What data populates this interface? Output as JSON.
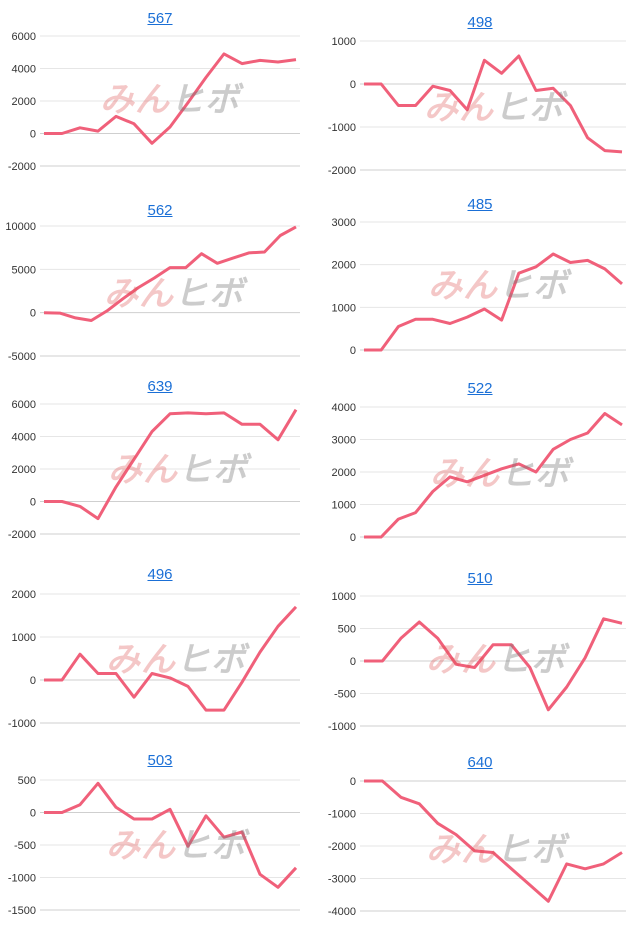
{
  "watermark": {
    "part1": "みん",
    "part2": "ヒボ"
  },
  "colors": {
    "line": "#f0607a",
    "grid": "#e6e6e6",
    "axis": "#cfcfcf",
    "tick": "#333333",
    "title": "#1a6fd6"
  },
  "chart_data": [
    {
      "type": "line",
      "title": "567",
      "ylim": [
        -2000,
        6000
      ],
      "yticks": [
        6000,
        4000,
        2000,
        0,
        -2000
      ],
      "values": [
        0,
        0,
        350,
        150,
        1050,
        600,
        -600,
        400,
        1900,
        3450,
        4900,
        4300,
        4500,
        4400,
        4550
      ]
    },
    {
      "type": "line",
      "title": "498",
      "ylim": [
        -2000,
        1000
      ],
      "yticks": [
        1000,
        0,
        -1000,
        -2000
      ],
      "values": [
        0,
        0,
        -500,
        -500,
        -50,
        -150,
        -600,
        550,
        250,
        650,
        -150,
        -100,
        -500,
        -1250,
        -1550,
        -1580
      ]
    },
    {
      "type": "line",
      "title": "562",
      "ylim": [
        -5000,
        10000
      ],
      "yticks": [
        10000,
        5000,
        0,
        -5000
      ],
      "values": [
        0,
        -50,
        -600,
        -900,
        200,
        1600,
        2900,
        4000,
        5200,
        5200,
        6800,
        5700,
        6300,
        6900,
        7000,
        8900,
        9900
      ]
    },
    {
      "type": "line",
      "title": "485",
      "ylim": [
        0,
        3000
      ],
      "yticks": [
        3000,
        2000,
        1000,
        0
      ],
      "values": [
        0,
        0,
        550,
        720,
        720,
        620,
        770,
        960,
        700,
        1800,
        1950,
        2250,
        2050,
        2100,
        1900,
        1550
      ]
    },
    {
      "type": "line",
      "title": "639",
      "ylim": [
        -2000,
        6000
      ],
      "yticks": [
        6000,
        4000,
        2000,
        0,
        -2000
      ],
      "values": [
        0,
        0,
        -300,
        -1050,
        900,
        2600,
        4300,
        5400,
        5450,
        5400,
        5450,
        4750,
        4750,
        3800,
        5650
      ]
    },
    {
      "type": "line",
      "title": "522",
      "ylim": [
        0,
        4000
      ],
      "yticks": [
        4000,
        3000,
        2000,
        1000,
        0
      ],
      "values": [
        0,
        0,
        550,
        750,
        1400,
        1850,
        1700,
        1900,
        2100,
        2250,
        2000,
        2700,
        3000,
        3200,
        3800,
        3450
      ]
    },
    {
      "type": "line",
      "title": "496",
      "ylim": [
        -1000,
        2000
      ],
      "yticks": [
        2000,
        1000,
        0,
        -1000
      ],
      "values": [
        0,
        0,
        600,
        150,
        150,
        -400,
        150,
        50,
        -150,
        -700,
        -700,
        -50,
        650,
        1250,
        1700
      ]
    },
    {
      "type": "line",
      "title": "510",
      "ylim": [
        -1000,
        1000
      ],
      "yticks": [
        1000,
        500,
        0,
        -500,
        -1000
      ],
      "values": [
        0,
        0,
        350,
        600,
        350,
        -50,
        -100,
        250,
        250,
        -100,
        -750,
        -400,
        50,
        650,
        580
      ]
    },
    {
      "type": "line",
      "title": "503",
      "ylim": [
        -1500,
        500
      ],
      "yticks": [
        500,
        0,
        -500,
        -1000,
        -1500
      ],
      "values": [
        0,
        0,
        120,
        450,
        80,
        -100,
        -100,
        50,
        -520,
        -50,
        -380,
        -300,
        -950,
        -1150,
        -850
      ]
    },
    {
      "type": "line",
      "title": "640",
      "ylim": [
        -4000,
        0
      ],
      "yticks": [
        0,
        -1000,
        -2000,
        -3000,
        -4000
      ],
      "values": [
        0,
        0,
        -500,
        -700,
        -1300,
        -1650,
        -2150,
        -2200,
        -2700,
        -3200,
        -3700,
        -2550,
        -2700,
        -2550,
        -2200
      ]
    }
  ]
}
